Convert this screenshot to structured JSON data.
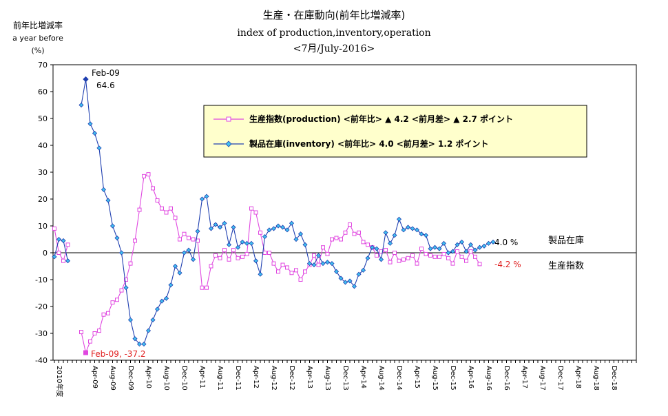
{
  "chart_data": {
    "type": "line",
    "title": "生産・在庫動向(前年比増減率)",
    "subtitle": "index of production,inventory,operation",
    "subtitle2": "<7月/July-2016>",
    "ylabel_lines": [
      "前年比増減率",
      "a year before",
      "(%)"
    ],
    "ylim": [
      -40,
      70
    ],
    "yticks": [
      70,
      60,
      50,
      40,
      30,
      20,
      10,
      0,
      -10,
      -20,
      -30,
      -40
    ],
    "x_start_label": "2010年度",
    "x_tick_labels": [
      "Apr-09",
      "Aug-09",
      "Dec-09",
      "Apr-10",
      "Aug-10",
      "Dec-10",
      "Apr-11",
      "Aug-11",
      "Dec-11",
      "Apr-12",
      "Aug-12",
      "Dec-12",
      "Apr-13",
      "Aug-13",
      "Dec-13",
      "Apr-14",
      "Aug-14",
      "Dec-14",
      "Apr-15",
      "Aug-15",
      "Dec-15",
      "Apr-16",
      "Aug-16",
      "Dec-16",
      "Apr-17",
      "Aug-17",
      "Dec-17",
      "Apr-18",
      "Aug-18",
      "Dec-18"
    ],
    "legend": {
      "position": "top-right",
      "entries": [
        "生産指数(production) <前年比> ▲ 4.2 <前月差> ▲ 2.7 ポイント",
        "製品在庫(inventory)  <前年比> 4.0 <前月差> 1.2 ポイント"
      ]
    },
    "series": [
      {
        "name": "生産指数",
        "color": "#e048e0",
        "marker": "square",
        "segments": [
          {
            "start_index": 0,
            "values": [
              9,
              0,
              -3,
              3
            ]
          },
          {
            "start_index": 6,
            "values": [
              -29.5,
              -37.2,
              -33,
              -30,
              -29,
              -23,
              -22.5,
              -18.5,
              -17.5,
              -14,
              -10,
              -4,
              4.5,
              16,
              28.5,
              29.2,
              24,
              19.5,
              16.5,
              15,
              16.5,
              13,
              5,
              7,
              5.5,
              5,
              4.5,
              -13,
              -13,
              -5,
              -1,
              -2,
              1,
              -2.5,
              1,
              -2,
              -1.5,
              -0.5,
              16.5,
              15,
              7.5,
              0,
              0,
              -4,
              -7,
              -4.5,
              -5.5,
              -7.5,
              -6.5,
              -10,
              -7,
              -4.5,
              -1,
              -4.5,
              2,
              -0.5,
              5,
              5.5,
              5,
              7.5,
              10.5,
              7,
              7.5,
              4,
              3,
              2,
              -1,
              0.5,
              1,
              -3.5,
              0,
              -3,
              -2.5,
              -2,
              -1,
              -4,
              1.5,
              -0.5,
              -1,
              -1.5,
              -1.5,
              -0.5,
              -2,
              -4,
              0.5,
              -1.5,
              -3,
              0.5,
              -1.5,
              -4.2
            ]
          }
        ]
      },
      {
        "name": "製品在庫",
        "color": "#1f3fb0",
        "marker": "diamond",
        "segments": [
          {
            "start_index": 0,
            "values": [
              -1.5,
              5,
              4.5,
              -3
            ]
          },
          {
            "start_index": 6,
            "values": [
              55,
              64.6,
              48,
              44.5,
              39,
              23.5,
              19.5,
              10,
              5.5,
              0,
              -13,
              -25,
              -32,
              -34,
              -34,
              -29,
              -25,
              -21,
              -18,
              -17,
              -12,
              -5,
              -7.5,
              0,
              1,
              -2.5,
              8,
              20,
              21,
              9,
              10.5,
              9.5,
              11,
              3,
              9.5,
              2,
              4,
              3.5,
              3.5,
              -3,
              -8,
              6,
              8.5,
              9,
              10,
              9.5,
              8.5,
              11,
              5,
              7,
              3,
              -4,
              -4.5,
              -1,
              -4,
              -3.5,
              -4,
              -7,
              -9.5,
              -11,
              -10.5,
              -12.5,
              -8,
              -6.5,
              -2,
              2,
              1.5,
              -2.5,
              7.5,
              3.5,
              6.5,
              12.5,
              8.5,
              9.5,
              9,
              8.5,
              7,
              6.5,
              1.5,
              2,
              1.5,
              3.5,
              0,
              0.5,
              3,
              4,
              0.5,
              3,
              1,
              2,
              2.5,
              3.5,
              4
            ]
          }
        ]
      }
    ],
    "annotations": {
      "prod_low": "Feb-09, -37.2",
      "inv_peak_label": "Feb-09",
      "inv_peak_value": "64.6",
      "inv_end_value": "4.0 %",
      "inv_name": "製品在庫",
      "prod_end_value": "-4.2 %",
      "prod_name": "生産指数"
    }
  }
}
